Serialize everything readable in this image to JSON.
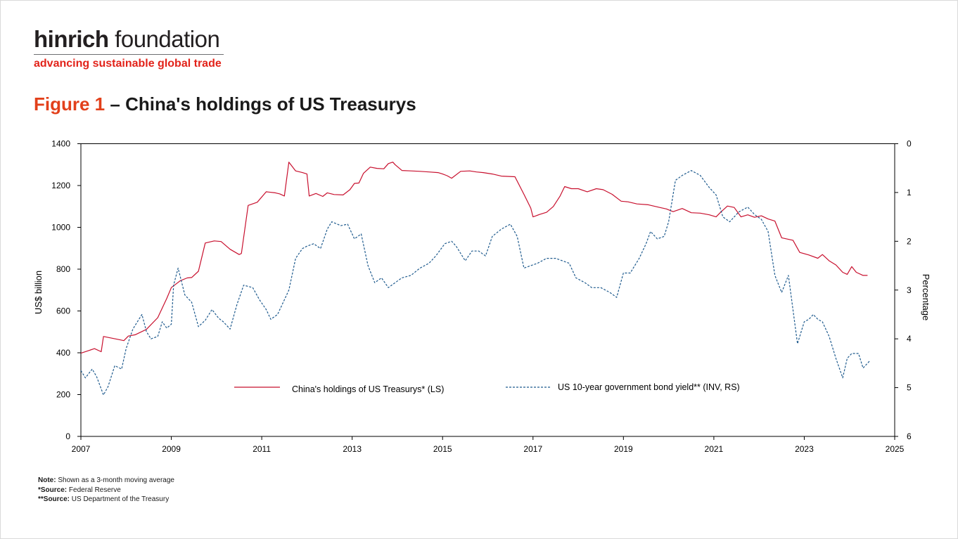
{
  "logo": {
    "name_bold": "hinrich",
    "name_rest": " foundation",
    "tagline": "advancing sustainable global trade"
  },
  "figure": {
    "number": "Figure 1",
    "dash": " – ",
    "title": "China's holdings of US Treasurys"
  },
  "notes": [
    {
      "label": "Note:",
      "text": " Shown as a 3-month moving average"
    },
    {
      "label": "*Source:",
      "text": " Federal Reserve"
    },
    {
      "label": "**Source:",
      "text": " US Department of the Treasury"
    }
  ],
  "colors": {
    "holdings": "#c8102e",
    "yield": "#1f5b8e",
    "title_accent": "#e2401b",
    "brand_red": "#e2231a"
  },
  "chart_data": {
    "type": "line",
    "xlabel": "",
    "ylabel_left": "US$ billion",
    "ylabel_right": "Percentage",
    "xlim": [
      2007,
      2025
    ],
    "ylim_left": [
      0,
      1400
    ],
    "ylim_right": [
      6,
      0
    ],
    "right_axis_inverted": true,
    "x_ticks": [
      "2007",
      "2009",
      "2011",
      "2013",
      "2015",
      "2017",
      "2019",
      "2021",
      "2023",
      "2025"
    ],
    "y_left_ticks": [
      "0",
      "200",
      "400",
      "600",
      "800",
      "1000",
      "1200",
      "1400"
    ],
    "y_right_ticks": [
      "0",
      "1",
      "2",
      "3",
      "4",
      "5",
      "6"
    ],
    "grid": false,
    "legend_position": "bottom-center",
    "series": [
      {
        "name": "China's holdings of US Treasurys* (LS)",
        "axis": "left",
        "style": "solid",
        "color": "#c8102e",
        "x": [
          2007.0,
          2007.3,
          2007.45,
          2007.5,
          2007.8,
          2007.95,
          2008.05,
          2008.2,
          2008.45,
          2008.7,
          2008.9,
          2009.0,
          2009.2,
          2009.35,
          2009.45,
          2009.6,
          2009.75,
          2009.95,
          2010.1,
          2010.3,
          2010.5,
          2010.55,
          2010.7,
          2010.9,
          2011.1,
          2011.3,
          2011.4,
          2011.5,
          2011.6,
          2011.75,
          2011.9,
          2012.0,
          2012.05,
          2012.2,
          2012.35,
          2012.45,
          2012.6,
          2012.8,
          2012.95,
          2013.05,
          2013.15,
          2013.25,
          2013.4,
          2013.55,
          2013.7,
          2013.8,
          2013.9,
          2013.95,
          2014.1,
          2014.3,
          2014.5,
          2014.7,
          2014.9,
          2015.0,
          2015.1,
          2015.2,
          2015.4,
          2015.6,
          2015.75,
          2015.9,
          2016.1,
          2016.3,
          2016.6,
          2016.8,
          2016.95,
          2017.0,
          2017.15,
          2017.3,
          2017.45,
          2017.6,
          2017.7,
          2017.85,
          2018.0,
          2018.2,
          2018.4,
          2018.55,
          2018.75,
          2018.95,
          2019.1,
          2019.3,
          2019.55,
          2019.8,
          2019.95,
          2020.1,
          2020.3,
          2020.5,
          2020.7,
          2020.9,
          2021.05,
          2021.15,
          2021.3,
          2021.45,
          2021.6,
          2021.75,
          2021.9,
          2022.05,
          2022.2,
          2022.35,
          2022.5,
          2022.75,
          2022.9,
          2023.1,
          2023.3,
          2023.4,
          2023.55,
          2023.7,
          2023.85,
          2023.95,
          2024.05,
          2024.15,
          2024.3,
          2024.4
        ],
        "values": [
          398,
          420,
          405,
          478,
          465,
          458,
          480,
          486,
          512,
          568,
          660,
          712,
          745,
          758,
          760,
          790,
          925,
          935,
          932,
          895,
          870,
          875,
          1105,
          1120,
          1170,
          1165,
          1160,
          1150,
          1312,
          1270,
          1262,
          1255,
          1150,
          1162,
          1148,
          1165,
          1157,
          1155,
          1180,
          1210,
          1212,
          1258,
          1288,
          1282,
          1280,
          1305,
          1312,
          1300,
          1272,
          1270,
          1268,
          1265,
          1262,
          1255,
          1247,
          1235,
          1268,
          1270,
          1265,
          1262,
          1255,
          1245,
          1242,
          1158,
          1092,
          1050,
          1062,
          1072,
          1100,
          1150,
          1195,
          1185,
          1185,
          1170,
          1185,
          1180,
          1158,
          1125,
          1122,
          1112,
          1108,
          1095,
          1088,
          1075,
          1090,
          1070,
          1068,
          1060,
          1050,
          1072,
          1102,
          1095,
          1050,
          1060,
          1048,
          1055,
          1040,
          1030,
          950,
          938,
          880,
          868,
          852,
          870,
          840,
          820,
          785,
          775,
          812,
          785,
          770,
          770
        ]
      },
      {
        "name": "US 10-year government bond yield** (INV, RS)",
        "axis": "right",
        "style": "dashed",
        "color": "#1f5b8e",
        "x": [
          2007.0,
          2007.1,
          2007.25,
          2007.35,
          2007.5,
          2007.6,
          2007.75,
          2007.9,
          2008.0,
          2008.15,
          2008.25,
          2008.35,
          2008.45,
          2008.55,
          2008.7,
          2008.8,
          2008.9,
          2009.0,
          2009.05,
          2009.15,
          2009.3,
          2009.45,
          2009.6,
          2009.75,
          2009.9,
          2010.05,
          2010.15,
          2010.3,
          2010.45,
          2010.6,
          2010.8,
          2010.95,
          2011.1,
          2011.2,
          2011.35,
          2011.5,
          2011.6,
          2011.75,
          2011.9,
          2012.0,
          2012.15,
          2012.3,
          2012.45,
          2012.55,
          2012.75,
          2012.9,
          2013.05,
          2013.2,
          2013.35,
          2013.5,
          2013.65,
          2013.8,
          2013.95,
          2014.1,
          2014.3,
          2014.5,
          2014.7,
          2014.85,
          2015.05,
          2015.2,
          2015.3,
          2015.5,
          2015.65,
          2015.8,
          2015.95,
          2016.1,
          2016.3,
          2016.5,
          2016.65,
          2016.8,
          2016.95,
          2017.1,
          2017.3,
          2017.5,
          2017.65,
          2017.8,
          2017.95,
          2018.15,
          2018.3,
          2018.5,
          2018.7,
          2018.85,
          2019.0,
          2019.15,
          2019.35,
          2019.5,
          2019.6,
          2019.75,
          2019.9,
          2020.0,
          2020.15,
          2020.3,
          2020.5,
          2020.7,
          2020.9,
          2021.05,
          2021.2,
          2021.35,
          2021.55,
          2021.75,
          2021.9,
          2022.05,
          2022.2,
          2022.35,
          2022.5,
          2022.65,
          2022.85,
          2023.0,
          2023.1,
          2023.2,
          2023.3,
          2023.4,
          2023.55,
          2023.7,
          2023.85,
          2023.95,
          2024.05,
          2024.2,
          2024.3,
          2024.45
        ],
        "values": [
          4.65,
          4.8,
          4.62,
          4.78,
          5.15,
          4.98,
          4.55,
          4.62,
          4.2,
          3.8,
          3.65,
          3.5,
          3.85,
          4.0,
          3.95,
          3.65,
          3.78,
          3.7,
          2.9,
          2.55,
          3.1,
          3.25,
          3.75,
          3.62,
          3.4,
          3.58,
          3.65,
          3.8,
          3.3,
          2.9,
          2.95,
          3.2,
          3.4,
          3.6,
          3.5,
          3.2,
          3.0,
          2.35,
          2.15,
          2.1,
          2.05,
          2.15,
          1.75,
          1.6,
          1.68,
          1.65,
          1.95,
          1.85,
          2.5,
          2.85,
          2.75,
          2.95,
          2.85,
          2.75,
          2.7,
          2.55,
          2.45,
          2.3,
          2.05,
          2.0,
          2.1,
          2.4,
          2.2,
          2.2,
          2.3,
          1.9,
          1.75,
          1.65,
          1.9,
          2.55,
          2.5,
          2.45,
          2.35,
          2.35,
          2.4,
          2.45,
          2.75,
          2.85,
          2.95,
          2.95,
          3.05,
          3.15,
          2.65,
          2.65,
          2.35,
          2.05,
          1.8,
          1.95,
          1.9,
          1.6,
          0.75,
          0.65,
          0.55,
          0.65,
          0.9,
          1.05,
          1.5,
          1.6,
          1.4,
          1.3,
          1.45,
          1.55,
          1.8,
          2.7,
          3.05,
          2.7,
          4.1,
          3.65,
          3.6,
          3.5,
          3.6,
          3.65,
          3.95,
          4.4,
          4.8,
          4.4,
          4.3,
          4.3,
          4.6,
          4.45
        ]
      }
    ]
  }
}
